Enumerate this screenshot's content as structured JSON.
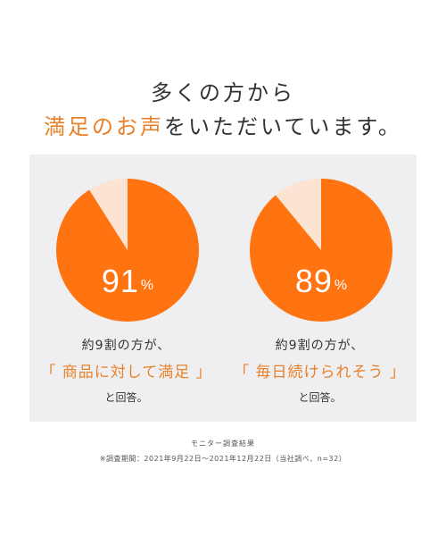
{
  "headline": {
    "line1": "多くの方から",
    "line2_accent": "満足のお声",
    "line2_rest": "をいただいています。"
  },
  "colors": {
    "accent_text": "#e8822a",
    "pie_main": "#ff7311",
    "pie_rest": "#fce3d2",
    "panel_bg": "#efeff1"
  },
  "chart_data": [
    {
      "type": "pie",
      "values": [
        91,
        9
      ],
      "value_label": "91",
      "unit": "%",
      "lines": [
        "約9割の方が、",
        "「 商品に対して満足 」",
        "と回答。"
      ]
    },
    {
      "type": "pie",
      "values": [
        89,
        11
      ],
      "value_label": "89",
      "unit": "%",
      "lines": [
        "約9割の方が、",
        "「 毎日続けられそう 」",
        "と回答。"
      ]
    }
  ],
  "notes": {
    "line1": "モニター調査結果",
    "line2": "※調査期間：2021年9月22日～2021年12月22日（当社調べ、n=32）"
  }
}
